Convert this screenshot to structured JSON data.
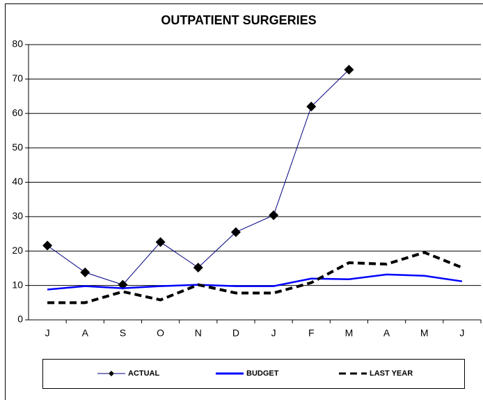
{
  "chart_data": {
    "type": "line",
    "title": "OUTPATIENT SURGERIES",
    "categories": [
      "J",
      "A",
      "S",
      "O",
      "N",
      "D",
      "J",
      "F",
      "M",
      "A",
      "M",
      "J"
    ],
    "series": [
      {
        "name": "ACTUAL",
        "color": "#000080",
        "marker": "diamond",
        "values": [
          21.6,
          13.8,
          10.2,
          22.6,
          15.2,
          25.5,
          30.4,
          62,
          72.7,
          null,
          null,
          null
        ]
      },
      {
        "name": "BUDGET",
        "color": "#0000ff",
        "values": [
          8.8,
          9.8,
          9.2,
          9.8,
          10.2,
          9.8,
          9.8,
          12,
          11.8,
          13.2,
          12.8,
          11.2
        ]
      },
      {
        "name": "LAST YEAR",
        "color": "#000000",
        "line_style": "dashed",
        "values": [
          5,
          5,
          8.2,
          5.8,
          10.2,
          7.8,
          7.8,
          10.8,
          16.6,
          16.2,
          19.6,
          15.2
        ]
      }
    ],
    "ylim": [
      0,
      80
    ],
    "yticks": [
      0,
      10,
      20,
      30,
      40,
      50,
      60,
      70,
      80
    ],
    "grid": true,
    "legend": "bottom"
  }
}
